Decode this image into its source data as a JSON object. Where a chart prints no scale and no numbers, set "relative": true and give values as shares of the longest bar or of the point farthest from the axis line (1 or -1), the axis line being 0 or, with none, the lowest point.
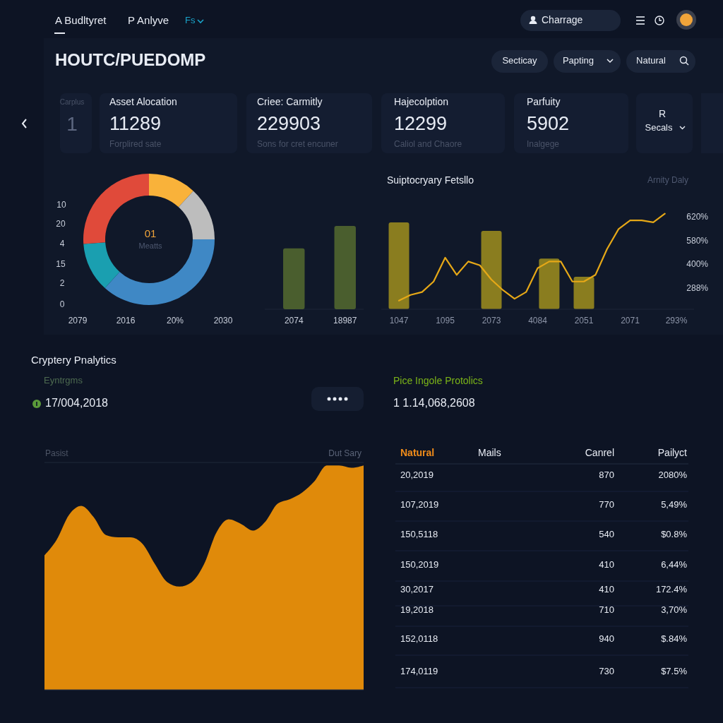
{
  "chart_data": [
    {
      "type": "other",
      "title": "HOUTC/PUEDOMP",
      "annotations": [
        "A Budltyret",
        "P Anlyve",
        "Fs",
        "Charrage",
        "Secticay",
        "Papting",
        "Natural",
        "Carplus",
        "1",
        "Asset Alocation",
        "11289",
        "Forplired sate",
        "Criee: Carmitly",
        "229903",
        "Sons for cret encuner",
        "Hajecolption",
        "12299",
        "Caliol and Chaore",
        "Parfuity",
        "5902",
        "Inalgege",
        "R",
        "Secals"
      ]
    },
    {
      "type": "donut",
      "categories": [
        null,
        null,
        null,
        null,
        null
      ],
      "values": [
        11.8,
        13.2,
        36.7,
        12.2,
        26.1
      ],
      "colors": [
        "#f9b23a",
        "#bdbdbd",
        "#3f88c5",
        "#1a9fb0",
        "#e04a3a"
      ],
      "annotations": [
        "10",
        "20",
        "4",
        "15",
        "2",
        "0",
        "2079",
        "2016",
        "20%",
        "2030",
        "01",
        "Meatts"
      ]
    },
    {
      "type": "bar",
      "relative": true,
      "categories": [
        "2074",
        "18987"
      ],
      "values": [
        0.73,
        1
      ],
      "color": "#4a5e2e"
    },
    {
      "type": "bar",
      "relative": true,
      "title": "Suiptocryary Fetsllo",
      "annotations": [
        "Arnity Daly",
        "620%",
        "580%",
        "400%",
        "288%"
      ],
      "categories": [
        "1047",
        null,
        null,
        null,
        "1095",
        null,
        null,
        null,
        "2073",
        null,
        null,
        null,
        "4084",
        null,
        null,
        null,
        "2051",
        null,
        null,
        null,
        "2071",
        null,
        null,
        null,
        "293%"
      ],
      "series": [
        {
          "type": "bar",
          "color": "#8a7d1f",
          "values": [
            0.91,
            null,
            null,
            null,
            null,
            null,
            null,
            null,
            0.82,
            null,
            null,
            null,
            null,
            0.53,
            null,
            null,
            0.34,
            null,
            null,
            null,
            null,
            null,
            null,
            null,
            null
          ]
        },
        {
          "type": "line",
          "color": "#e6a817",
          "values": [
            0.09,
            0.15,
            0.18,
            0.29,
            0.54,
            0.36,
            0.5,
            0.46,
            0.31,
            0.2,
            0.11,
            0.18,
            0.43,
            0.5,
            0.5,
            0.29,
            0.29,
            0.36,
            0.63,
            0.84,
            0.93,
            0.93,
            0.91,
            1.0,
            null
          ]
        }
      ]
    },
    {
      "type": "area",
      "relative": true,
      "title": "Cryptery Pnalytics",
      "annotations": [
        "Eyntrgms",
        "17/004,2018",
        "Pasist",
        "Dut Sary"
      ],
      "categories": [
        null,
        null,
        null,
        null,
        null,
        null,
        null,
        null,
        null,
        null,
        null,
        null,
        null,
        null,
        null,
        null,
        null,
        null,
        null,
        null,
        null,
        null,
        null,
        null,
        null,
        null,
        null
      ],
      "color": "#e08a0a",
      "values": [
        0.6,
        0.67,
        0.78,
        0.82,
        0.77,
        0.69,
        0.68,
        0.68,
        0.65,
        0.56,
        0.48,
        0.46,
        0.48,
        0.56,
        0.7,
        0.76,
        0.74,
        0.71,
        0.75,
        0.83,
        0.85,
        0.88,
        0.93,
        1.0,
        1.0,
        0.99,
        1.0
      ]
    },
    {
      "type": "other",
      "title": "Pice Ingole Protolics",
      "annotations": [
        "1 1.14,068,2608",
        "Natural",
        "Mails",
        "Canrel",
        "Pailyct",
        "20,2019",
        "870",
        "2080%",
        "107,2019",
        "770",
        "5,49%",
        "150,5118",
        "540",
        "$0.8%",
        "150,2019",
        "410",
        "6,44%",
        "30,2017",
        "410",
        "172.4%",
        "19,2018",
        "710",
        "3,70%",
        "152,0118",
        "940",
        "$.84%",
        "174,0119",
        "730",
        "$7.5%"
      ]
    }
  ]
}
